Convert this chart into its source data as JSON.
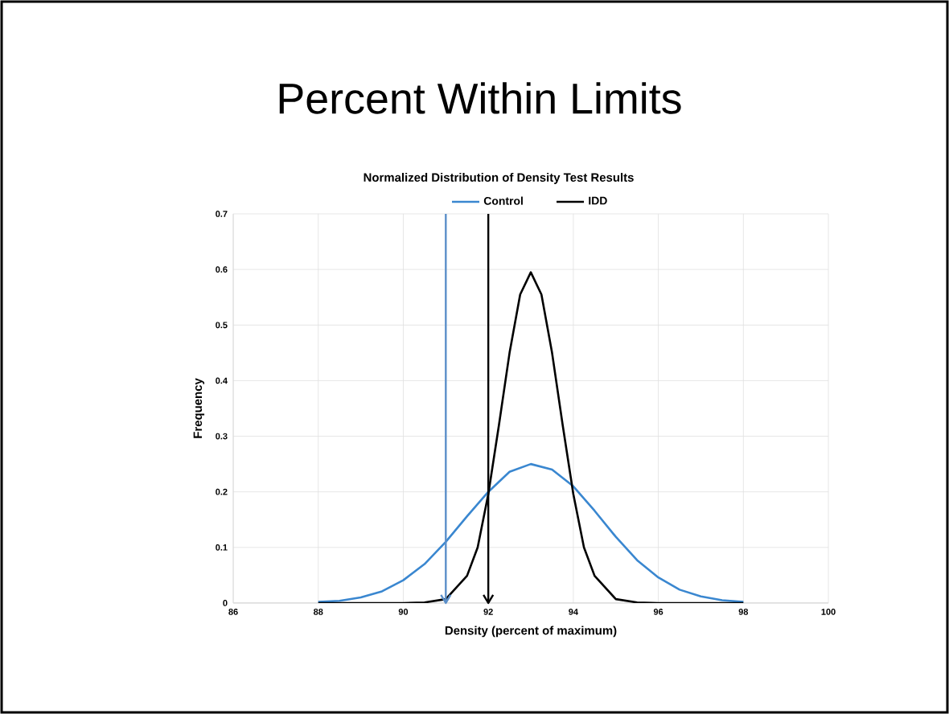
{
  "chart_data": {
    "type": "line",
    "title": "Percent Within Limits",
    "subtitle": "Normalized Distribution of Density Test Results",
    "xlabel": "Density (percent of maximum)",
    "ylabel": "Frequency",
    "xlim": [
      86,
      100
    ],
    "xticks": [
      86,
      88,
      90,
      92,
      94,
      96,
      98,
      100
    ],
    "ylim": [
      0,
      0.7
    ],
    "yticks": [
      0,
      0.1,
      0.2,
      0.3,
      0.4,
      0.5,
      0.6,
      0.7
    ],
    "grid": true,
    "legend": "top",
    "marker": "none",
    "line_style": "solid",
    "series": [
      {
        "name": "Control",
        "color": "#3a87d0",
        "x": [
          88,
          88.5,
          89,
          89.5,
          90,
          90.5,
          91,
          91.5,
          92,
          92.5,
          93,
          93.5,
          94,
          94.5,
          95,
          95.5,
          96,
          96.5,
          97,
          97.5,
          98
        ],
        "values": [
          0.002,
          0.004,
          0.01,
          0.021,
          0.041,
          0.07,
          0.11,
          0.156,
          0.2,
          0.236,
          0.25,
          0.24,
          0.21,
          0.166,
          0.119,
          0.077,
          0.046,
          0.024,
          0.012,
          0.005,
          0.002
        ]
      },
      {
        "name": "IDD",
        "color": "#000000",
        "x": [
          88,
          89,
          90,
          90.5,
          91,
          91.5,
          91.75,
          92,
          92.25,
          92.5,
          92.75,
          93,
          93.25,
          93.5,
          93.75,
          94,
          94.25,
          94.5,
          95,
          95.5,
          96,
          97,
          98
        ],
        "values": [
          0,
          0,
          0,
          0.001,
          0.007,
          0.049,
          0.1,
          0.196,
          0.32,
          0.45,
          0.555,
          0.595,
          0.555,
          0.45,
          0.32,
          0.196,
          0.1,
          0.049,
          0.007,
          0.001,
          0,
          0,
          0
        ]
      }
    ],
    "ref_lines": [
      {
        "axis": "x",
        "value": 91,
        "color": "#5b8fc9"
      },
      {
        "axis": "x",
        "value": 92,
        "color": "#000000"
      }
    ]
  }
}
